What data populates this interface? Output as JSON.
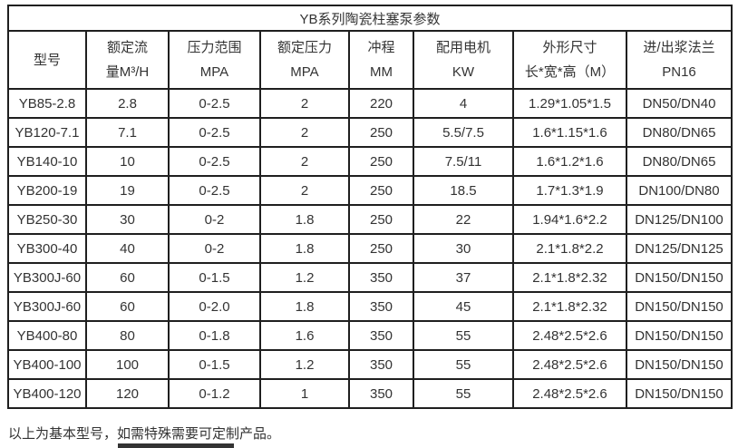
{
  "title": "YB系列陶瓷柱塞泵参数",
  "columns": [
    {
      "line1": "型号",
      "line2": ""
    },
    {
      "line1": "额定流",
      "line2": "量M³/H"
    },
    {
      "line1": "压力范围",
      "line2": "MPA"
    },
    {
      "line1": "额定压力",
      "line2": "MPA"
    },
    {
      "line1": "冲程",
      "line2": "MM"
    },
    {
      "line1": "配用电机",
      "line2": "KW"
    },
    {
      "line1": "外形尺寸",
      "line2": "长*宽*高（M）"
    },
    {
      "line1": "进/出浆法兰",
      "line2": "PN16"
    }
  ],
  "rows": [
    [
      "YB85-2.8",
      "2.8",
      "0-2.5",
      "2",
      "220",
      "4",
      "1.29*1.05*1.5",
      "DN50/DN40"
    ],
    [
      "YB120-7.1",
      "7.1",
      "0-2.5",
      "2",
      "250",
      "5.5/7.5",
      "1.6*1.15*1.6",
      "DN80/DN65"
    ],
    [
      "YB140-10",
      "10",
      "0-2.5",
      "2",
      "250",
      "7.5/11",
      "1.6*1.2*1.6",
      "DN80/DN65"
    ],
    [
      "YB200-19",
      "19",
      "0-2.5",
      "2",
      "250",
      "18.5",
      "1.7*1.3*1.9",
      "DN100/DN80"
    ],
    [
      "YB250-30",
      "30",
      "0-2",
      "1.8",
      "250",
      "22",
      "1.94*1.6*2.2",
      "DN125/DN100"
    ],
    [
      "YB300-40",
      "40",
      "0-2",
      "1.8",
      "250",
      "30",
      "2.1*1.8*2.2",
      "DN125/DN125"
    ],
    [
      "YB300J-60",
      "60",
      "0-1.5",
      "1.2",
      "350",
      "37",
      "2.1*1.8*2.32",
      "DN150/DN150"
    ],
    [
      "YB300J-60",
      "60",
      "0-2.0",
      "1.8",
      "350",
      "45",
      "2.1*1.8*2.32",
      "DN150/DN150"
    ],
    [
      "YB400-80",
      "80",
      "0-1.8",
      "1.6",
      "350",
      "55",
      "2.48*2.5*2.6",
      "DN150/DN150"
    ],
    [
      "YB400-100",
      "100",
      "0-1.5",
      "1.2",
      "350",
      "55",
      "2.48*2.5*2.6",
      "DN150/DN150"
    ],
    [
      "YB400-120",
      "120",
      "0-1.2",
      "1",
      "350",
      "55",
      "2.48*2.5*2.6",
      "DN150/DN150"
    ]
  ],
  "footer_note": "以上为基本型号，如需特殊需要可定制产品。",
  "colors": {
    "border": "#1f1f1f",
    "text": "#333333",
    "background": "#ffffff",
    "partial_bar": "#333333"
  }
}
